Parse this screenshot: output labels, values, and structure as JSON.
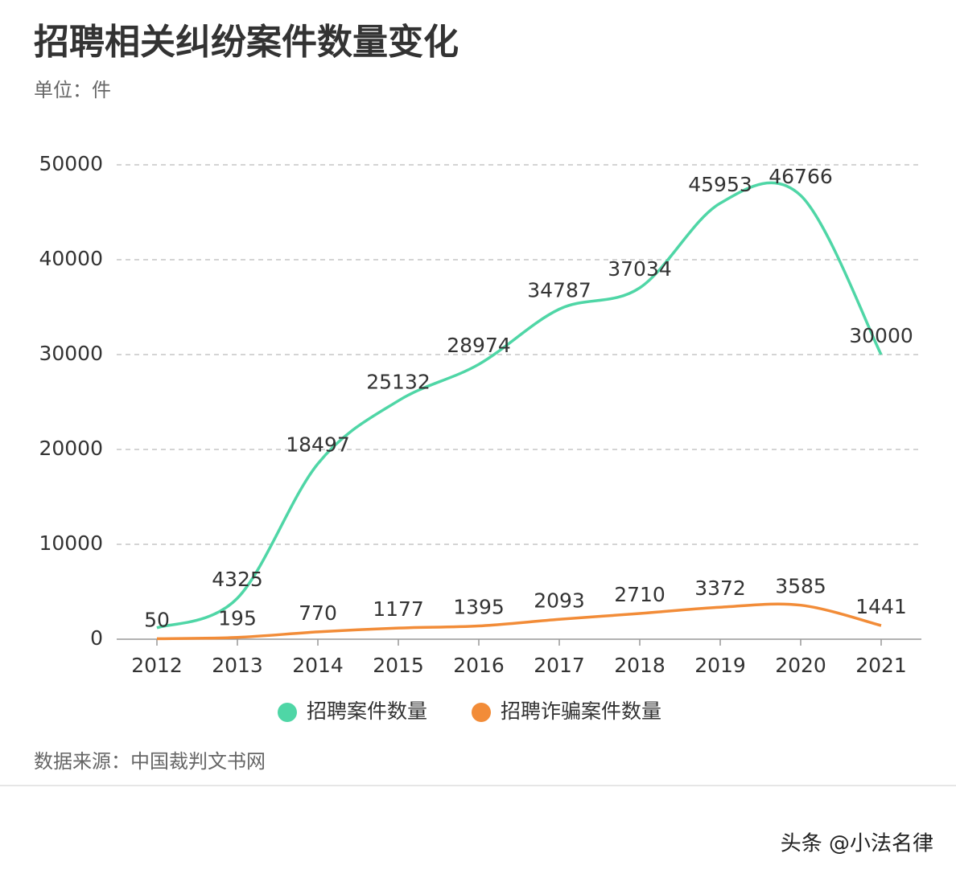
{
  "chart_data": {
    "type": "line",
    "title": "招聘相关纠纷案件数量变化",
    "subtitle": "单位：件",
    "source": "数据来源：中国裁判文书网",
    "footer": "头条 @小法名律",
    "categories": [
      "2012",
      "2013",
      "2014",
      "2015",
      "2016",
      "2017",
      "2018",
      "2019",
      "2020",
      "2021"
    ],
    "series": [
      {
        "name": "招聘案件数量",
        "color": "#4fd6a6",
        "values": [
          1200,
          4325,
          18497,
          25132,
          28974,
          34787,
          37034,
          45953,
          46766,
          30000
        ],
        "value_labels": [
          null,
          "4325",
          "18497",
          "25132",
          "28974",
          "34787",
          "37034",
          "45953",
          "46766",
          "30000"
        ]
      },
      {
        "name": "招聘诈骗案件数量",
        "color": "#f28c38",
        "values": [
          50,
          195,
          770,
          1177,
          1395,
          2093,
          2710,
          3372,
          3585,
          1441
        ]
      }
    ],
    "ylim": [
      0,
      50000
    ],
    "yticks": [
      0,
      10000,
      20000,
      30000,
      40000,
      50000
    ],
    "grid": true
  }
}
